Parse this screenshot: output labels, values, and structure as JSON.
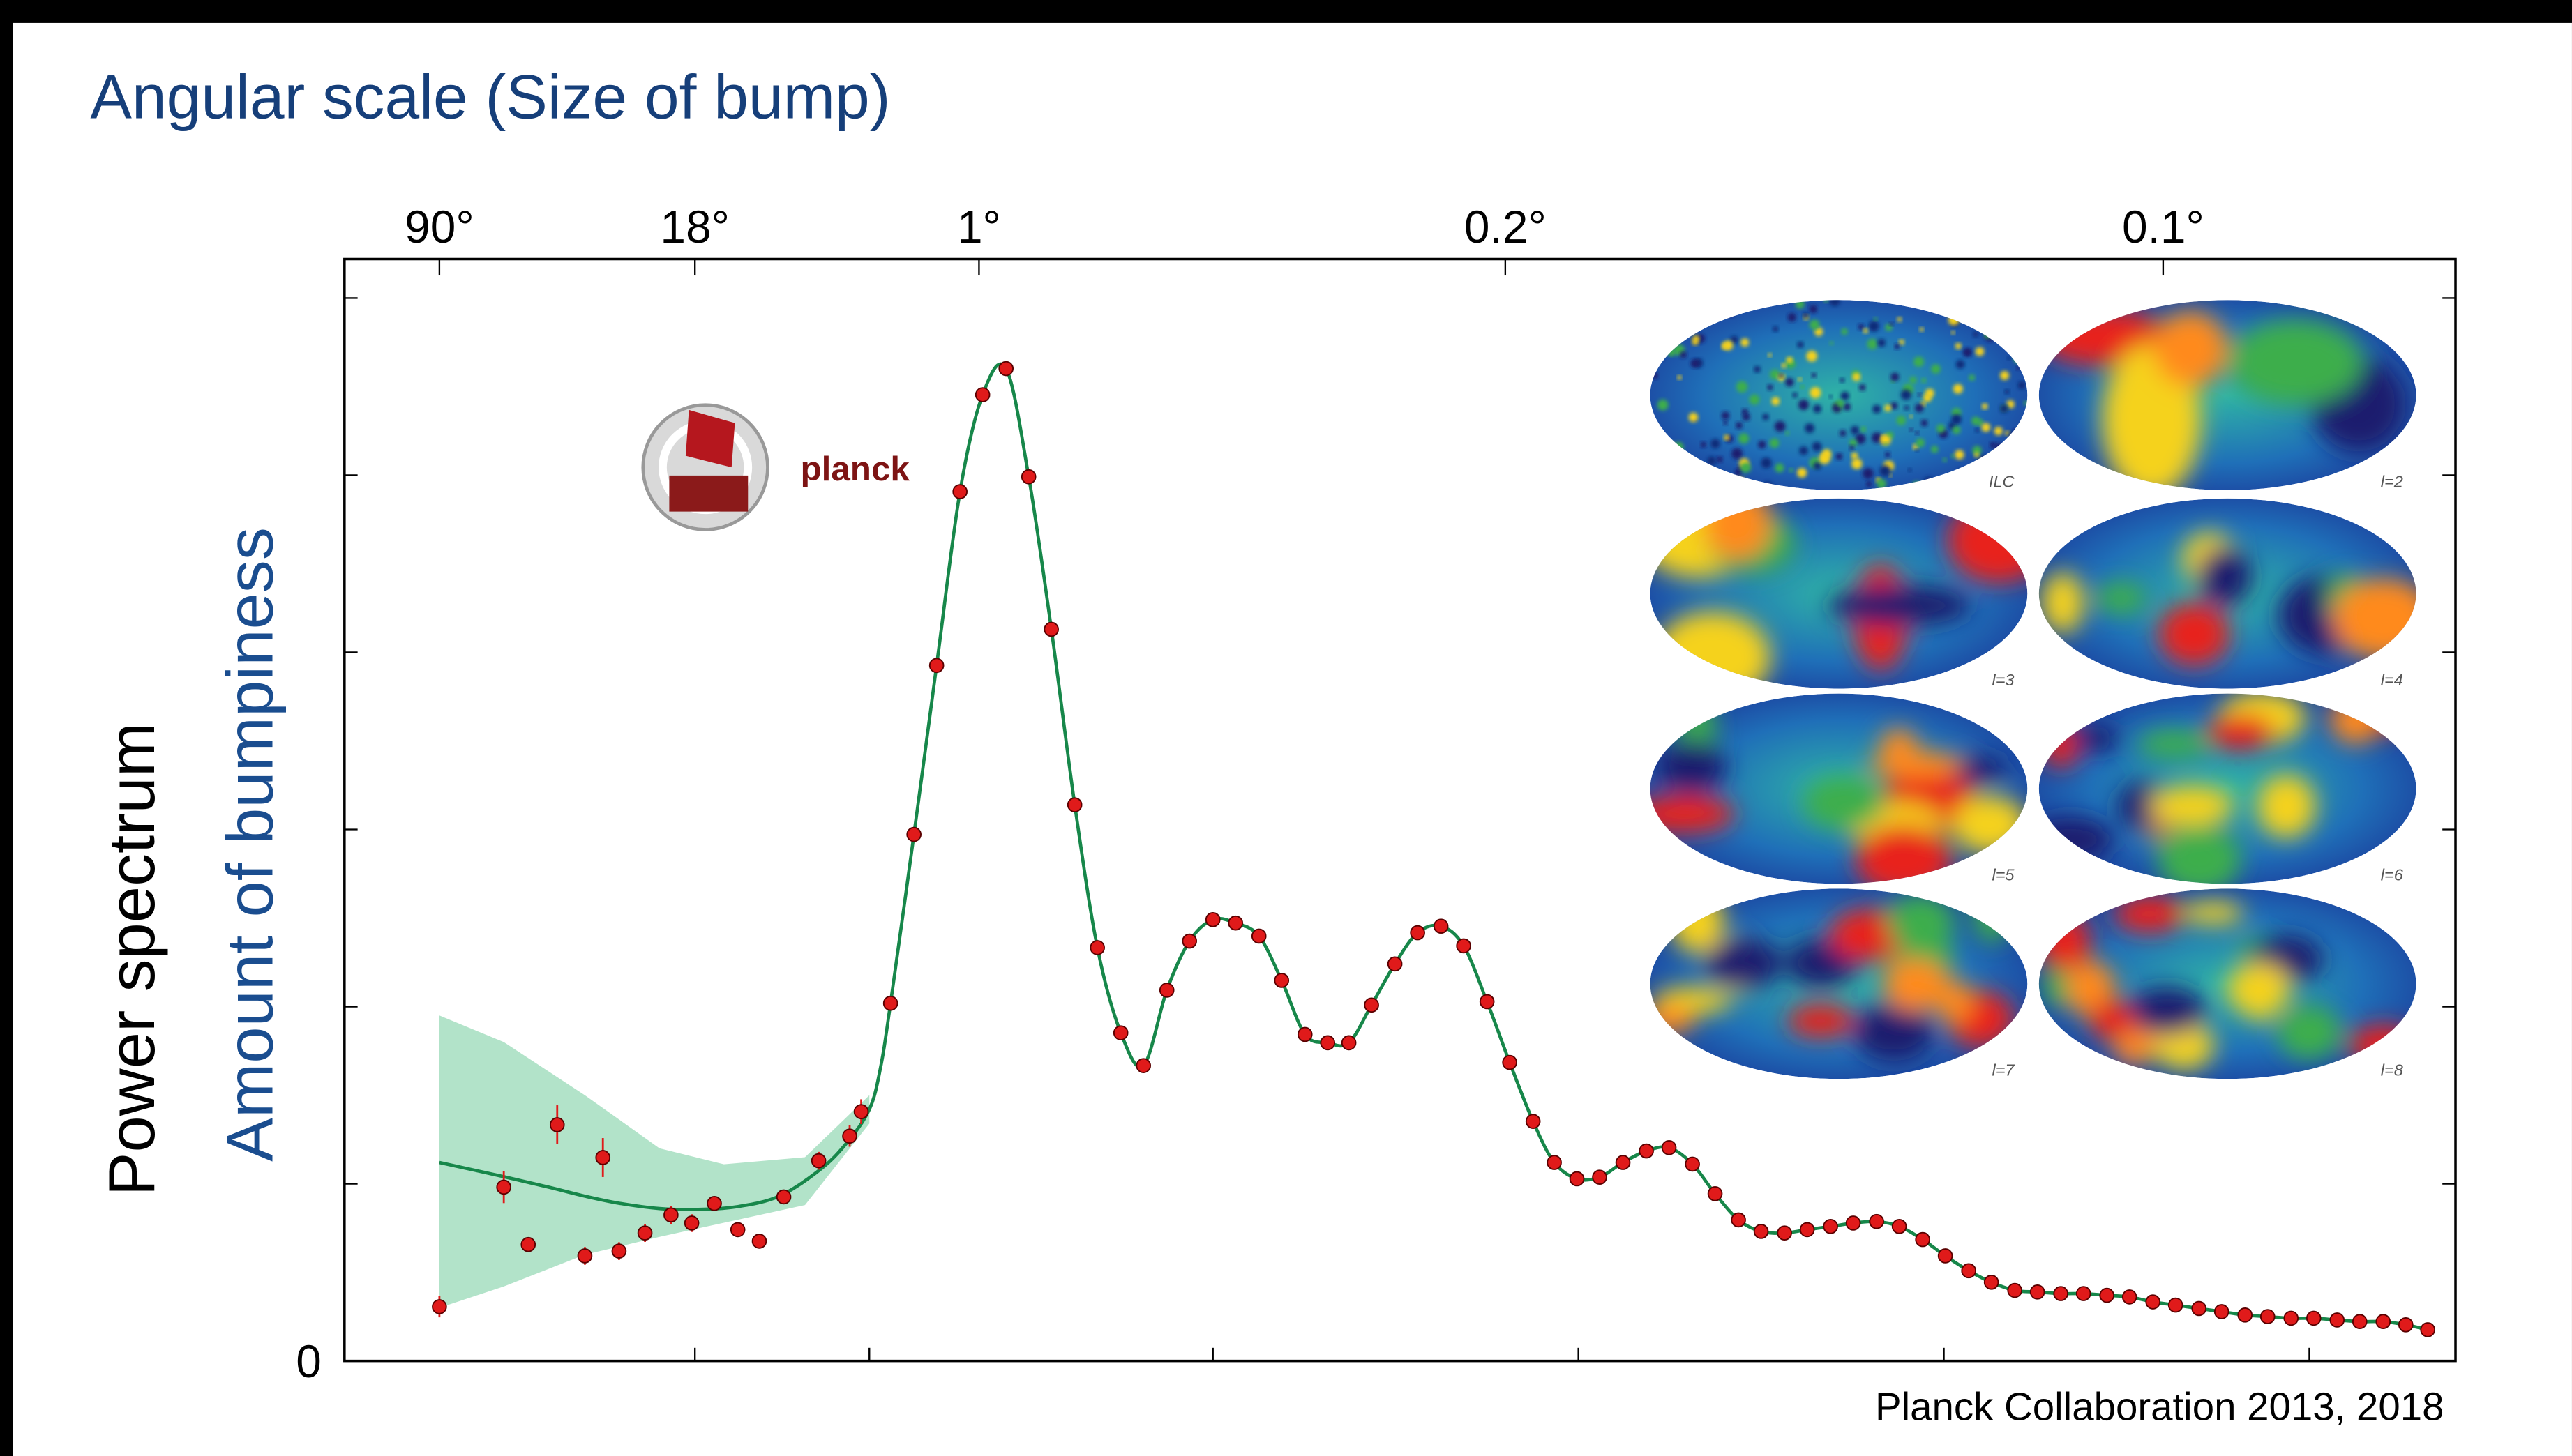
{
  "chart_data": {
    "type": "scatter",
    "title": "Angular scale (Size of bump)",
    "ylabel": "Power spectrum",
    "ylabel2": "Amount of bumpiness",
    "source": "Planck Collaboration 2013, 2018",
    "logo_text": "planck",
    "inset_labels": [
      "ILC",
      "l=2",
      "l=3",
      "l=4",
      "l=5",
      "l=6",
      "l=7",
      "l=8"
    ],
    "xscale": "log-linear",
    "xbreak": 30,
    "xlim": [
      1.1,
      2200
    ],
    "ylim": [
      0,
      6220
    ],
    "yticks": [
      0
    ],
    "yminor_ticks": [
      1000,
      2000,
      3000,
      4000,
      5000,
      6000
    ],
    "xminor_ticks": [
      10,
      30,
      500,
      1000,
      1500,
      2000
    ],
    "top_xticks": [
      {
        "value": 2,
        "label": "90°"
      },
      {
        "value": 10,
        "label": "18°"
      },
      {
        "value": 180,
        "label": "1°"
      },
      {
        "value": 900,
        "label": "0.2°"
      },
      {
        "value": 1800,
        "label": "0.1°"
      }
    ],
    "series": [
      {
        "type": "errorbar",
        "color": "#e01a1a",
        "x": [
          2,
          3,
          3.5,
          4.2,
          5,
          5.6,
          6.2,
          7.3,
          8.6,
          9.8,
          11.3,
          13.1,
          15,
          17.5,
          21.8,
          26.5,
          28.5,
          59,
          91,
          122,
          154,
          185,
          217,
          248,
          279,
          311,
          342,
          374,
          405,
          437,
          468,
          500,
          531,
          563,
          594,
          626,
          657,
          686,
          717,
          749,
          780,
          812,
          843,
          875,
          906,
          938,
          967,
          998,
          1029,
          1061,
          1093,
          1124,
          1156,
          1187,
          1219,
          1250,
          1282,
          1313,
          1345,
          1376,
          1408,
          1439,
          1471,
          1502,
          1534,
          1565,
          1597,
          1628,
          1660,
          1691,
          1723,
          1754,
          1786,
          1817,
          1849,
          1880,
          1912,
          1943,
          1975,
          2006,
          2038,
          2069,
          2101,
          2132,
          2162
        ],
        "values": [
          306,
          981,
          657,
          1333,
          593,
          1148,
          620,
          722,
          824,
          778,
          889,
          741,
          676,
          926,
          1130,
          1269,
          1407,
          2019,
          2972,
          3926,
          4907,
          5454,
          5602,
          4991,
          4130,
          3139,
          2333,
          1852,
          1667,
          2093,
          2370,
          2491,
          2472,
          2398,
          2148,
          1843,
          1796,
          1796,
          2009,
          2241,
          2417,
          2454,
          2343,
          2028,
          1685,
          1352,
          1120,
          1028,
          1037,
          1120,
          1185,
          1204,
          1111,
          944,
          796,
          731,
          722,
          741,
          759,
          778,
          787,
          759,
          685,
          593,
          509,
          444,
          398,
          389,
          380,
          380,
          370,
          361,
          333,
          315,
          296,
          278,
          259,
          250,
          241,
          241,
          231,
          222,
          222,
          204,
          176
        ],
        "errors": [
          60,
          90,
          40,
          110,
          50,
          110,
          50,
          50,
          50,
          50,
          40,
          40,
          40,
          40,
          50,
          60,
          70,
          20,
          20,
          20,
          20,
          20,
          20,
          20,
          20,
          20,
          20,
          20,
          20,
          20,
          20,
          20,
          20,
          20,
          20,
          20,
          20,
          20,
          20,
          20,
          20,
          20,
          20,
          20,
          20,
          20,
          20,
          20,
          20,
          20,
          20,
          20,
          20,
          20,
          20,
          20,
          20,
          20,
          20,
          20,
          20,
          20,
          20,
          20,
          20,
          20,
          20,
          20,
          20,
          20,
          20,
          20,
          20,
          20,
          20,
          20,
          20,
          20,
          20,
          20,
          20,
          20,
          20,
          20,
          20
        ]
      },
      {
        "type": "line",
        "color": "#17874a",
        "band_color": "#9fdcbc",
        "x": [
          2,
          3,
          4,
          5,
          6.2,
          8,
          10,
          13,
          17,
          22,
          26,
          30,
          45,
          59,
          91,
          122,
          154,
          185,
          217,
          248,
          279,
          311,
          342,
          374,
          405,
          437,
          468,
          500,
          531,
          563,
          594,
          626,
          657,
          686,
          717,
          749,
          780,
          812,
          843,
          875,
          906,
          938,
          967,
          998,
          1029,
          1061,
          1093,
          1124,
          1156,
          1187,
          1219,
          1250,
          1282,
          1313,
          1345,
          1376,
          1408,
          1439,
          1471,
          1502,
          1534,
          1565,
          1597,
          1628,
          1660,
          1691,
          1723,
          1754,
          1786,
          1817,
          1849,
          1880,
          1912,
          1943,
          1975,
          2006,
          2038,
          2069,
          2101,
          2132,
          2162
        ],
        "values": [
          1120,
          1040,
          980,
          930,
          890,
          860,
          855,
          870,
          930,
          1080,
          1230,
          1420,
          1650,
          2019,
          2972,
          3926,
          4907,
          5454,
          5602,
          4991,
          4130,
          3139,
          2333,
          1852,
          1667,
          2093,
          2370,
          2491,
          2472,
          2398,
          2148,
          1843,
          1796,
          1796,
          2009,
          2241,
          2417,
          2454,
          2343,
          2028,
          1685,
          1352,
          1120,
          1028,
          1037,
          1120,
          1185,
          1204,
          1111,
          944,
          796,
          731,
          722,
          741,
          759,
          778,
          787,
          759,
          685,
          593,
          509,
          444,
          398,
          389,
          380,
          380,
          370,
          361,
          333,
          315,
          296,
          278,
          259,
          250,
          241,
          241,
          231,
          222,
          222,
          204,
          176
        ],
        "band_x": [
          2,
          3,
          5,
          8,
          12,
          20,
          30
        ],
        "band_upper": [
          1950,
          1800,
          1500,
          1200,
          1110,
          1150,
          1500
        ],
        "band_lower": [
          300,
          420,
          600,
          700,
          780,
          880,
          1340
        ]
      }
    ]
  }
}
